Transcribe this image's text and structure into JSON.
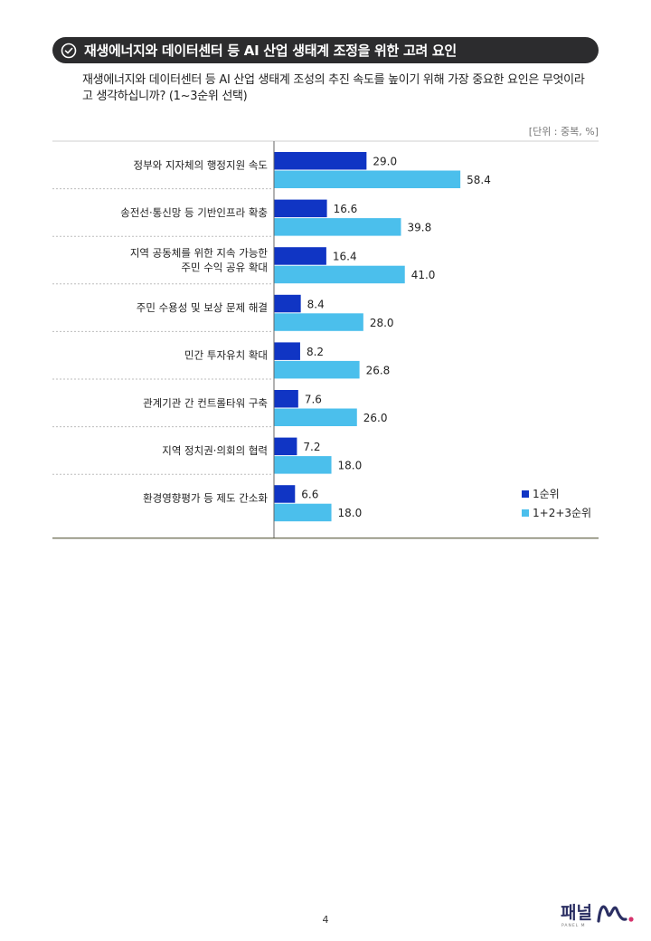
{
  "header": {
    "title": "재생에너지와 데이터센터 등 AI 산업 생태계 조정을 위한 고려 요인"
  },
  "question": {
    "text": "재생에너지와 데이터센터 등 AI 산업 생태계 조성의 추진 속도를 높이기 위해 가장 중요한 요인은 무엇이라고 생각하십니까? (1~3순위 선택)"
  },
  "unit_label": "[단위 : 중복, %]",
  "colors": {
    "header_bg": "#2c2c2e",
    "rank1": "#1035c4",
    "rank123": "#4bbfec",
    "divider": "#5a5a3c"
  },
  "chart_data": {
    "type": "bar",
    "orientation": "horizontal",
    "categories": [
      [
        "정부와 지자체의 행정지원 속도"
      ],
      [
        "송전선·통신망 등 기반인프라 확충"
      ],
      [
        "지역 공동체를 위한 지속 가능한",
        "주민 수익 공유 확대"
      ],
      [
        "주민 수용성 및 보상 문제 해결"
      ],
      [
        "민간 투자유치 확대"
      ],
      [
        "관계기관 간 컨트롤타워 구축"
      ],
      [
        "지역 정치권·의회의 협력"
      ],
      [
        "환경영향평가 등 제도 간소화"
      ]
    ],
    "series": [
      {
        "name": "1순위",
        "values": [
          29.0,
          16.6,
          16.4,
          8.4,
          8.2,
          7.6,
          7.2,
          6.6
        ]
      },
      {
        "name": "1+2+3순위",
        "values": [
          58.4,
          39.8,
          41.0,
          28.0,
          26.8,
          26.0,
          18.0,
          18.0
        ]
      }
    ],
    "xlim": [
      0,
      100
    ],
    "legend_position": "bottom-right",
    "grid": false
  },
  "footer": {
    "page_number": "4",
    "logo_text": "패널",
    "logo_sub": "PANEL M"
  }
}
